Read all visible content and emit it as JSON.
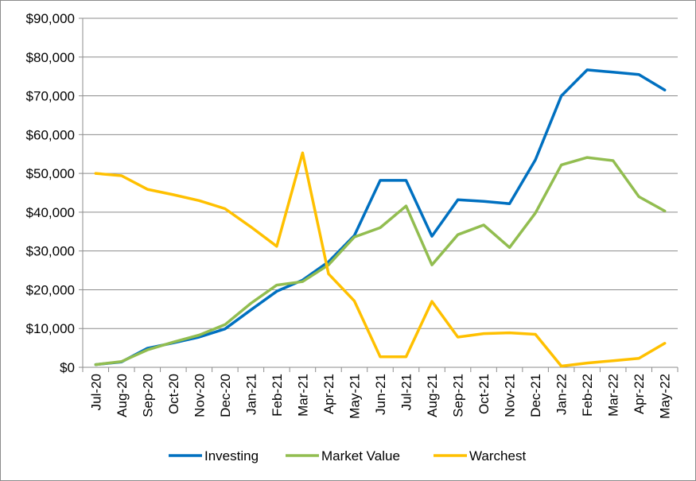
{
  "chart_data": {
    "type": "line",
    "title": "",
    "xlabel": "",
    "ylabel": "",
    "categories": [
      "Jul-20",
      "Aug-20",
      "Sep-20",
      "Oct-20",
      "Nov-20",
      "Dec-20",
      "Jan-21",
      "Feb-21",
      "Mar-21",
      "Apr-21",
      "May-21",
      "Jun-21",
      "Jul-21",
      "Aug-21",
      "Sep-21",
      "Oct-21",
      "Nov-21",
      "Dec-21",
      "Jan-22",
      "Feb-22",
      "Mar-22",
      "Apr-22",
      "May-22"
    ],
    "ylim": [
      0,
      90000
    ],
    "yticks": [
      0,
      10000,
      20000,
      30000,
      40000,
      50000,
      60000,
      70000,
      80000,
      90000
    ],
    "ytick_labels": [
      "$0",
      "$10,000",
      "$20,000",
      "$30,000",
      "$40,000",
      "$50,000",
      "$60,000",
      "$70,000",
      "$80,000",
      "$90,000"
    ],
    "grid": true,
    "legend_position": "bottom",
    "series": [
      {
        "name": "Investing",
        "color": "#0070C0",
        "values": [
          700,
          1400,
          4900,
          6300,
          7800,
          9900,
          14800,
          19600,
          22500,
          27200,
          34000,
          48200,
          48200,
          33800,
          43200,
          42800,
          42200,
          53500,
          70000,
          76700,
          76100,
          75500,
          71500
        ]
      },
      {
        "name": "Market Value",
        "color": "#92BD50",
        "values": [
          700,
          1500,
          4500,
          6500,
          8300,
          11000,
          16500,
          21200,
          22100,
          26400,
          33600,
          36000,
          41600,
          26400,
          34200,
          36700,
          30900,
          39800,
          52200,
          54100,
          53300,
          44000,
          40300
        ]
      },
      {
        "name": "Warchest",
        "color": "#FFC000",
        "values": [
          50000,
          49400,
          45900,
          44500,
          43000,
          40900,
          36200,
          31200,
          55300,
          24100,
          17100,
          2700,
          2700,
          17000,
          7800,
          8700,
          8900,
          8500,
          300,
          1100,
          1700,
          2300,
          6200
        ]
      }
    ]
  }
}
